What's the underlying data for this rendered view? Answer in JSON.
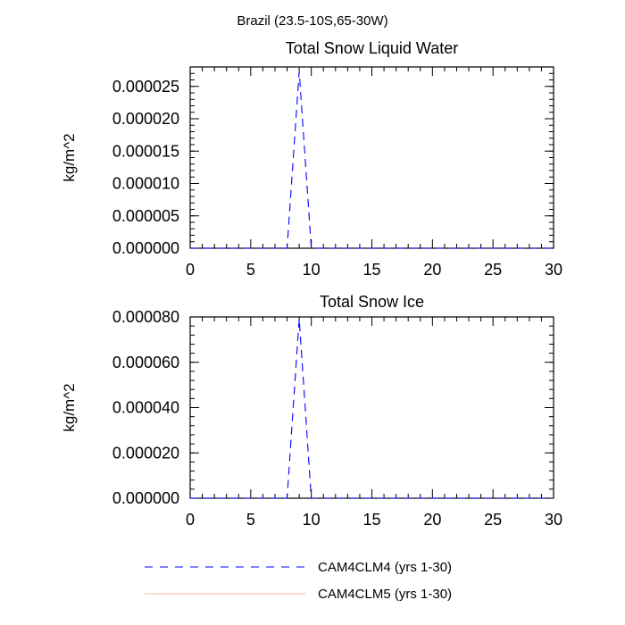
{
  "figure_title": "Brazil (23.5-10S,65-30W)",
  "chart_data": [
    {
      "type": "line",
      "title": "Total Snow Liquid Water",
      "xlabel": "",
      "ylabel": "kg/m^2",
      "xlim": [
        0,
        30
      ],
      "ylim": [
        0,
        2.8e-05
      ],
      "xticks": [
        0,
        5,
        10,
        15,
        20,
        25,
        30
      ],
      "xtick_labels": [
        "0",
        "5",
        "10",
        "15",
        "20",
        "25",
        "30"
      ],
      "yticks": [
        0,
        5e-06,
        1e-05,
        1.5e-05,
        2e-05,
        2.5e-05
      ],
      "ytick_labels": [
        "0.000000",
        "0.000005",
        "0.000010",
        "0.000015",
        "0.000020",
        "0.000025"
      ],
      "y_minor_step": 1e-06,
      "series": [
        {
          "name": "CAM4CLM4 (yrs 1-30)",
          "color": "#0000ff",
          "dash": "dashed",
          "x": [
            0,
            1,
            2,
            3,
            4,
            5,
            6,
            7,
            8,
            9,
            10,
            11,
            12,
            13,
            14,
            15,
            16,
            17,
            18,
            19,
            20,
            21,
            22,
            23,
            24,
            25,
            26,
            27,
            28,
            29,
            30
          ],
          "y": [
            0,
            0,
            0,
            0,
            0,
            0,
            0,
            0,
            0,
            2.73e-05,
            0,
            0,
            0,
            0,
            0,
            0,
            0,
            0,
            0,
            0,
            0,
            0,
            0,
            0,
            0,
            0,
            0,
            0,
            0,
            0,
            0
          ]
        }
      ]
    },
    {
      "type": "line",
      "title": "Total Snow Ice",
      "xlabel": "",
      "ylabel": "kg/m^2",
      "xlim": [
        0,
        30
      ],
      "ylim": [
        0,
        8e-05
      ],
      "xticks": [
        0,
        5,
        10,
        15,
        20,
        25,
        30
      ],
      "xtick_labels": [
        "0",
        "5",
        "10",
        "15",
        "20",
        "25",
        "30"
      ],
      "yticks": [
        0,
        2e-05,
        4e-05,
        6e-05,
        8e-05
      ],
      "ytick_labels": [
        "0.000000",
        "0.000020",
        "0.000040",
        "0.000060",
        "0.000080"
      ],
      "y_minor_step": 4e-06,
      "series": [
        {
          "name": "CAM4CLM4 (yrs 1-30)",
          "color": "#0000ff",
          "dash": "dashed",
          "x": [
            0,
            1,
            2,
            3,
            4,
            5,
            6,
            7,
            8,
            9,
            10,
            11,
            12,
            13,
            14,
            15,
            16,
            17,
            18,
            19,
            20,
            21,
            22,
            23,
            24,
            25,
            26,
            27,
            28,
            29,
            30
          ],
          "y": [
            0,
            0,
            0,
            0,
            0,
            0,
            0,
            0,
            0,
            7.92e-05,
            0,
            0,
            0,
            0,
            0,
            0,
            0,
            0,
            0,
            0,
            0,
            0,
            0,
            0,
            0,
            0,
            0,
            0,
            0,
            0,
            0
          ]
        }
      ]
    }
  ],
  "legend": {
    "items": [
      {
        "label": "CAM4CLM4 (yrs 1-30)",
        "color": "#0000ff",
        "dash": "dashed"
      },
      {
        "label": "CAM4CLM5 (yrs 1-30)",
        "color": "#ff0000",
        "dash": "solid"
      }
    ]
  }
}
